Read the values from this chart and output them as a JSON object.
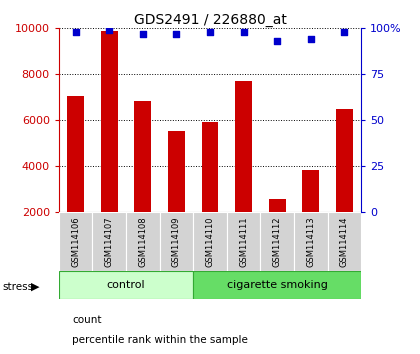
{
  "title": "GDS2491 / 226880_at",
  "samples": [
    "GSM114106",
    "GSM114107",
    "GSM114108",
    "GSM114109",
    "GSM114110",
    "GSM114111",
    "GSM114112",
    "GSM114113",
    "GSM114114"
  ],
  "counts": [
    7050,
    9900,
    6850,
    5550,
    5950,
    7700,
    2600,
    3850,
    6500
  ],
  "percentiles": [
    98,
    99,
    97,
    97,
    98,
    98,
    93,
    94,
    98
  ],
  "groups": [
    {
      "label": "control",
      "start": 0,
      "end": 4,
      "color": "#ccffcc"
    },
    {
      "label": "cigarette smoking",
      "start": 4,
      "end": 9,
      "color": "#66dd66"
    }
  ],
  "bar_color": "#cc0000",
  "dot_color": "#0000cc",
  "ylim_left": [
    2000,
    10000
  ],
  "ylim_right": [
    0,
    100
  ],
  "yticks_left": [
    2000,
    4000,
    6000,
    8000,
    10000
  ],
  "yticks_right": [
    0,
    25,
    50,
    75,
    100
  ],
  "yticklabels_right": [
    "0",
    "25",
    "50",
    "75",
    "100%"
  ],
  "left_axis_color": "#cc0000",
  "right_axis_color": "#0000cc",
  "stress_label": "stress",
  "legend_count": "count",
  "legend_pct": "percentile rank within the sample",
  "background_color": "#ffffff"
}
